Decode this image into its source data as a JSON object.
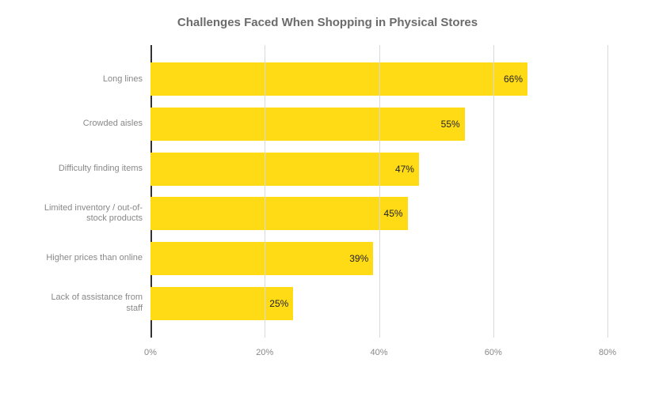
{
  "chart": {
    "type": "bar-horizontal",
    "title": "Challenges Faced When Shopping in Physical Stores",
    "title_fontsize": 15,
    "title_color": "#6b6b6b",
    "background_color": "#ffffff",
    "bar_color": "#ffdb15",
    "value_label_color": "#222222",
    "axis_label_color": "#888888",
    "gridline_color": "#d9d9d9",
    "axis_line_color": "#333333",
    "y_label_fontsize": 11,
    "x_label_fontsize": 11,
    "value_fontsize": 12,
    "xlim": [
      0,
      80
    ],
    "xtick_step": 20,
    "xticks": [
      {
        "value": 0,
        "label": "0%"
      },
      {
        "value": 20,
        "label": "20%"
      },
      {
        "value": 40,
        "label": "40%"
      },
      {
        "value": 60,
        "label": "60%"
      },
      {
        "value": 80,
        "label": "80%"
      }
    ],
    "bars": [
      {
        "label": "Long lines",
        "value": 66,
        "display": "66%"
      },
      {
        "label": "Crowded aisles",
        "value": 55,
        "display": "55%"
      },
      {
        "label": "Difficulty finding items",
        "value": 47,
        "display": "47%"
      },
      {
        "label": "Limited inventory / out-of-stock products",
        "value": 45,
        "display": "45%"
      },
      {
        "label": "Higher prices than online",
        "value": 39,
        "display": "39%"
      },
      {
        "label": "Lack of assistance from staff",
        "value": 25,
        "display": "25%"
      }
    ]
  }
}
